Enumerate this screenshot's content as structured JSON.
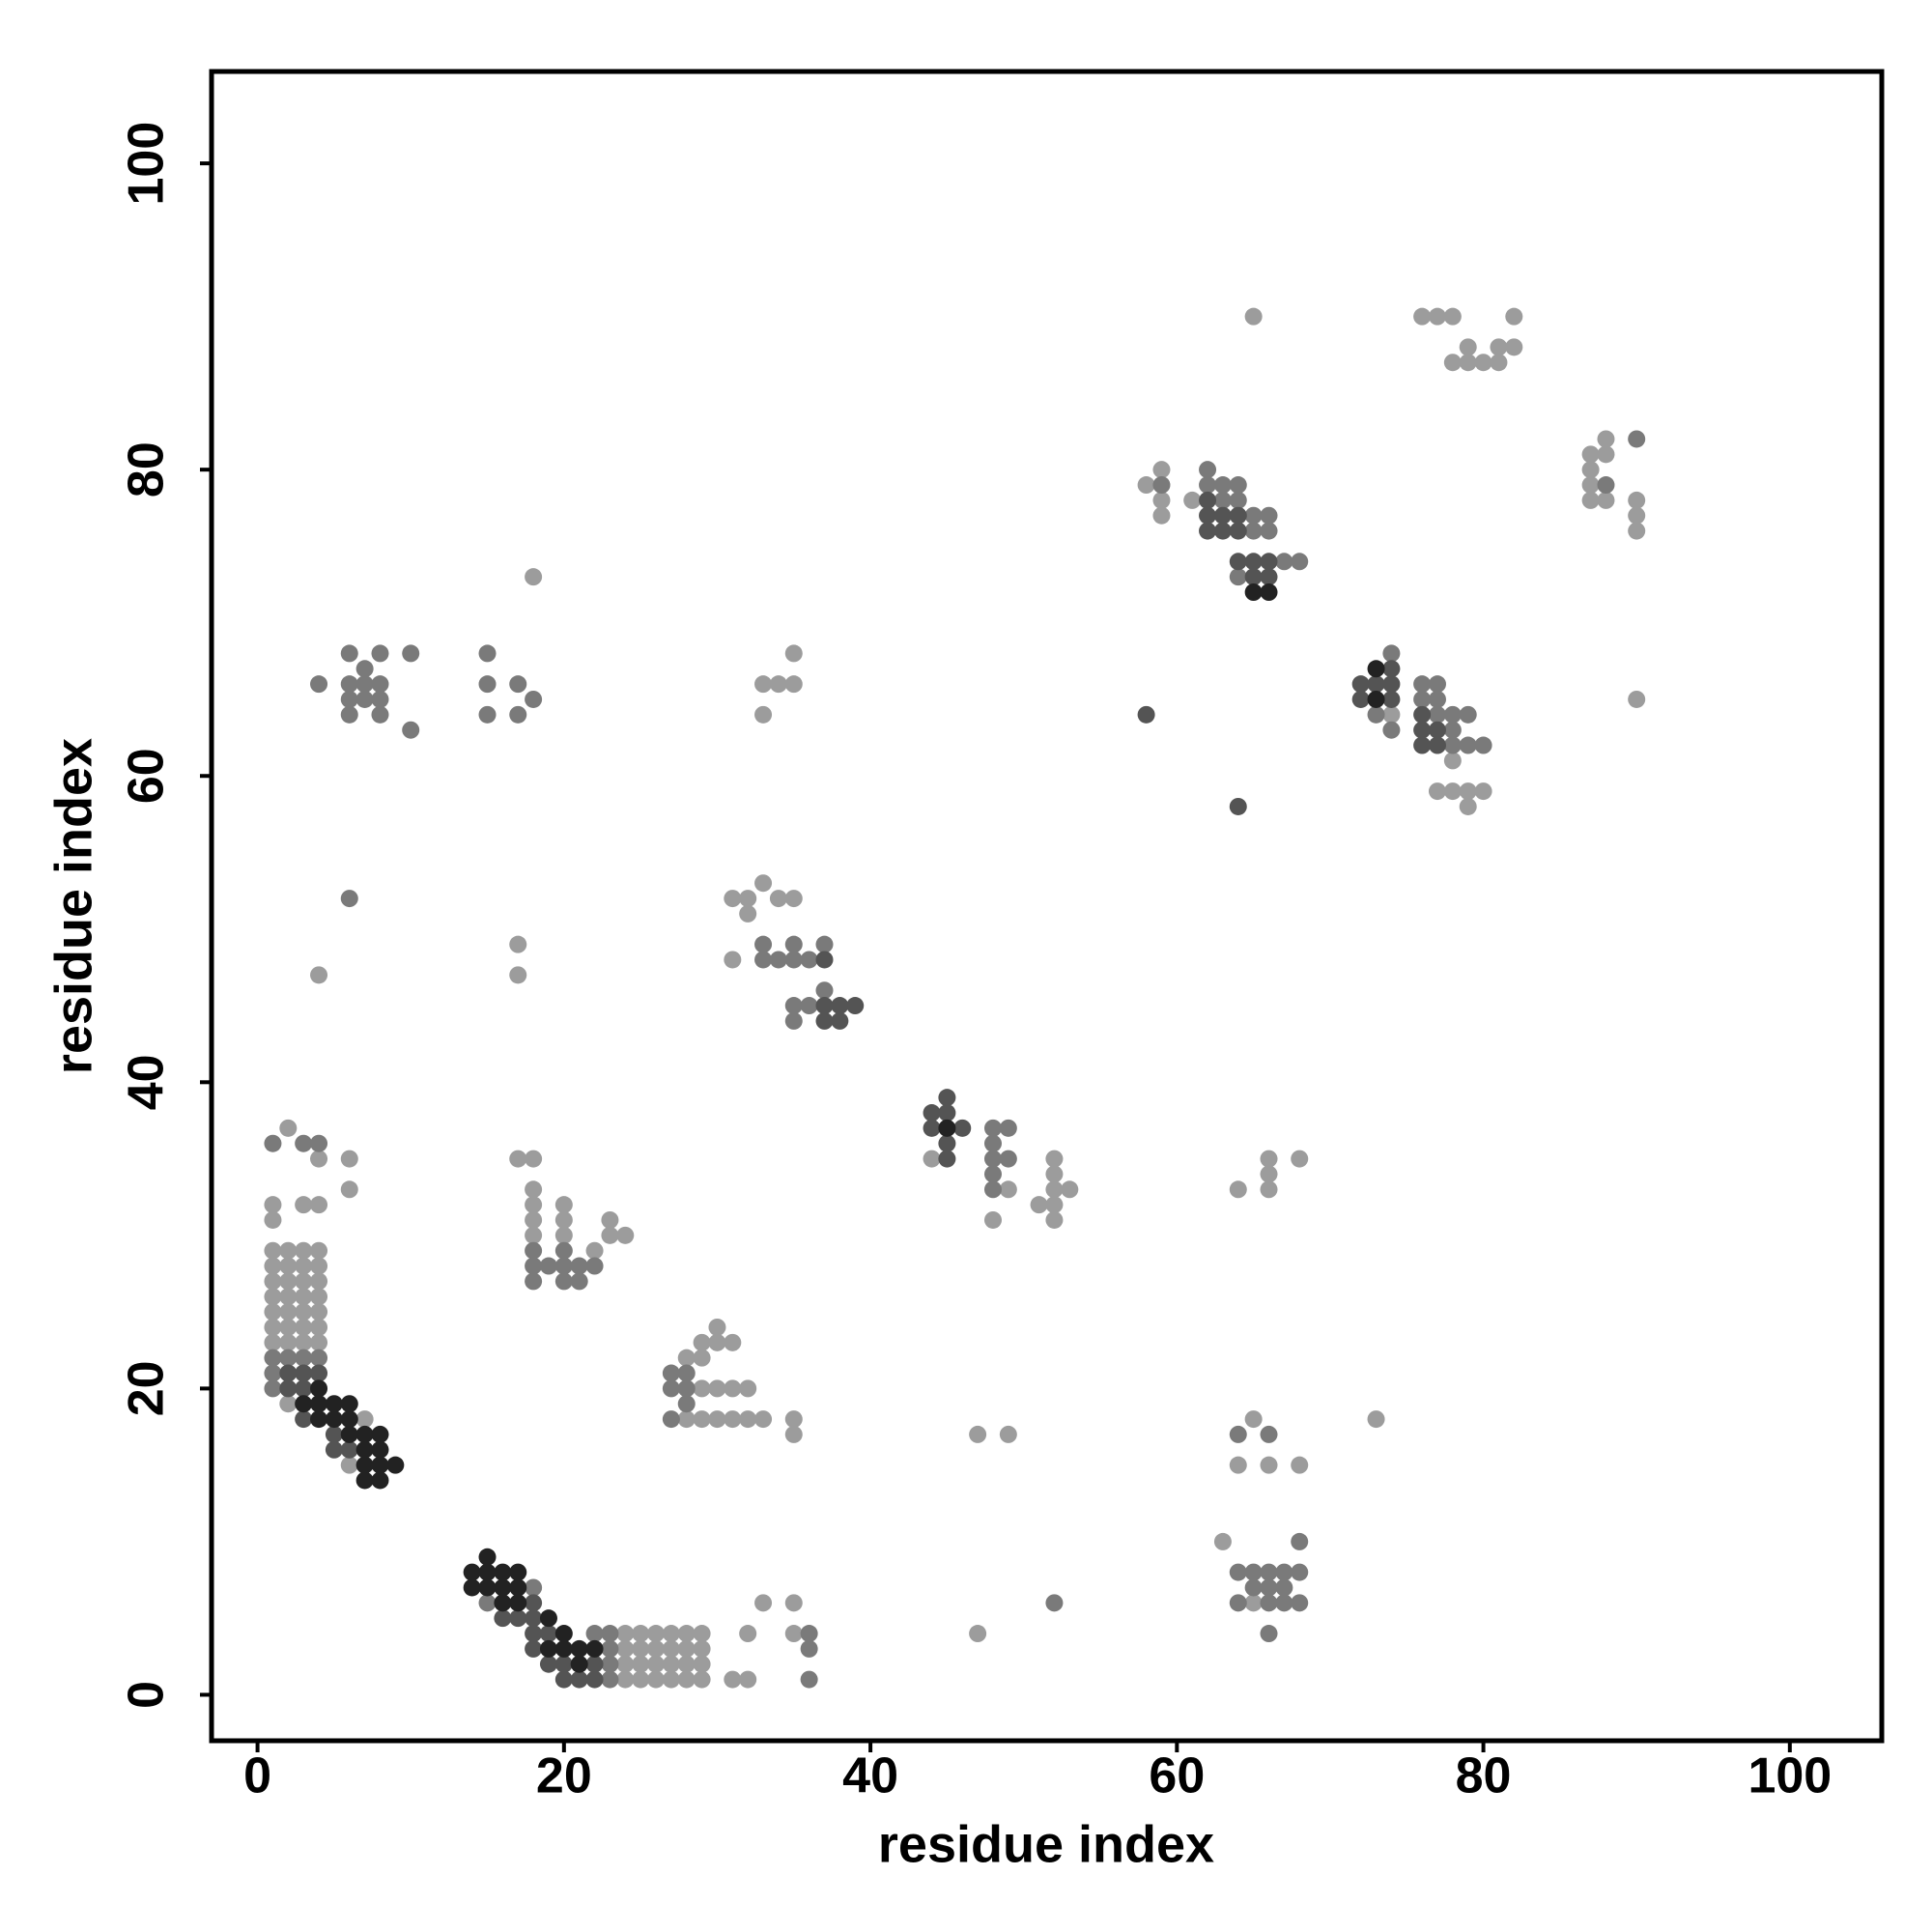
{
  "chart_data": {
    "type": "scatter",
    "xlabel": "residue index",
    "ylabel": "residue index",
    "xlim": [
      -3,
      106
    ],
    "ylim": [
      -3,
      106
    ],
    "xticks": [
      0,
      20,
      40,
      60,
      80,
      100
    ],
    "yticks": [
      0,
      20,
      40,
      60,
      80,
      100
    ],
    "grid": false,
    "series": [
      {
        "color": "#9c9c9c",
        "x": [
          1,
          1,
          1,
          1,
          1,
          1,
          1,
          2,
          2,
          2,
          2,
          2,
          2,
          2,
          3,
          3,
          3,
          3,
          3,
          3,
          3,
          4,
          4,
          4,
          4,
          4,
          4,
          4,
          1,
          1,
          2,
          3,
          4,
          4,
          6,
          6,
          2,
          6,
          7,
          4,
          18,
          17,
          17,
          17,
          18,
          18,
          18,
          18,
          18,
          20,
          20,
          20,
          22,
          23,
          23,
          24,
          28,
          29,
          29,
          30,
          30,
          31,
          29,
          30,
          31,
          32,
          29,
          30,
          31,
          32,
          33,
          35,
          35,
          28,
          24,
          25,
          26,
          27,
          28,
          29,
          24,
          25,
          26,
          27,
          28,
          29,
          24,
          25,
          26,
          27,
          28,
          29,
          24,
          25,
          26,
          27,
          28,
          29,
          31,
          32,
          32,
          33,
          35,
          35,
          31,
          32,
          33,
          34,
          35,
          32,
          31,
          33,
          34,
          35,
          35,
          33,
          44,
          47,
          49,
          47,
          49,
          48,
          51,
          52,
          52,
          52,
          52,
          52,
          53,
          58,
          59,
          59,
          59,
          61,
          65,
          64,
          66,
          66,
          66,
          68,
          73,
          65,
          64,
          66,
          68,
          63,
          65,
          76,
          77,
          78,
          78,
          79,
          79,
          80,
          81,
          81,
          82,
          82,
          87,
          87,
          87,
          87,
          88,
          88,
          88,
          90,
          90,
          90,
          90,
          78,
          77,
          78,
          79,
          80,
          79,
          74
        ],
        "values": [
          23,
          24,
          25,
          26,
          27,
          28,
          29,
          23,
          24,
          25,
          26,
          27,
          28,
          29,
          23,
          24,
          25,
          26,
          27,
          28,
          29,
          23,
          24,
          25,
          26,
          27,
          28,
          29,
          31,
          32,
          37,
          32,
          32,
          35,
          35,
          33,
          19,
          15,
          18,
          47,
          73,
          49,
          47,
          35,
          35,
          33,
          32,
          31,
          30,
          32,
          31,
          30,
          29,
          31,
          30,
          30,
          22,
          23,
          22,
          24,
          23,
          23,
          20,
          20,
          20,
          20,
          18,
          18,
          18,
          18,
          18,
          18,
          17,
          18,
          4,
          4,
          4,
          4,
          4,
          4,
          3,
          3,
          3,
          3,
          3,
          3,
          2,
          2,
          2,
          2,
          2,
          2,
          1,
          1,
          1,
          1,
          1,
          1,
          1,
          1,
          4,
          6,
          6,
          4,
          52,
          52,
          53,
          52,
          52,
          51,
          48,
          66,
          66,
          66,
          68,
          64,
          35,
          17,
          17,
          4,
          33,
          31,
          32,
          35,
          34,
          33,
          32,
          31,
          33,
          79,
          80,
          78,
          77,
          78,
          90,
          33,
          35,
          34,
          33,
          35,
          18,
          18,
          15,
          15,
          15,
          10,
          6,
          90,
          90,
          90,
          87,
          88,
          87,
          87,
          87,
          88,
          88,
          90,
          81,
          80,
          79,
          78,
          82,
          81,
          78,
          78,
          77,
          76,
          65,
          61,
          59,
          59,
          59,
          59,
          58,
          64
        ]
      },
      {
        "color": "#7a7a7a",
        "x": [
          1,
          1,
          1,
          2,
          3,
          4,
          1,
          3,
          4,
          6,
          4,
          6,
          6,
          6,
          6,
          7,
          7,
          7,
          8,
          8,
          8,
          8,
          10,
          10,
          15,
          15,
          15,
          17,
          17,
          18,
          18,
          18,
          18,
          19,
          20,
          20,
          20,
          21,
          21,
          22,
          27,
          27,
          28,
          28,
          28,
          27,
          15,
          18,
          23,
          22,
          23,
          23,
          23,
          36,
          36,
          36,
          52,
          33,
          33,
          34,
          35,
          35,
          36,
          37,
          37,
          35,
          35,
          36,
          48,
          48,
          48,
          48,
          49,
          49,
          48,
          59,
          62,
          62,
          63,
          64,
          63,
          64,
          65,
          66,
          65,
          66,
          64,
          67,
          68,
          64,
          66,
          64,
          65,
          66,
          67,
          68,
          64,
          66,
          67,
          68,
          65,
          66,
          67,
          68,
          66,
          74,
          74,
          76,
          77,
          76,
          77,
          77,
          78,
          79,
          78,
          79,
          80,
          78,
          88,
          90,
          73
        ],
        "values": [
          22,
          21,
          20,
          22,
          22,
          22,
          36,
          36,
          36,
          52,
          66,
          68,
          66,
          65,
          64,
          67,
          66,
          65,
          68,
          66,
          65,
          64,
          68,
          63,
          68,
          66,
          64,
          66,
          64,
          65,
          29,
          28,
          27,
          28,
          29,
          28,
          27,
          28,
          27,
          28,
          21,
          20,
          21,
          20,
          19,
          18,
          6,
          7,
          4,
          4,
          3,
          2,
          1,
          4,
          3,
          1,
          6,
          49,
          48,
          48,
          49,
          48,
          48,
          49,
          46,
          45,
          44,
          45,
          37,
          36,
          35,
          34,
          37,
          35,
          33,
          79,
          80,
          79,
          79,
          79,
          78,
          78,
          77,
          77,
          76,
          76,
          73,
          74,
          74,
          17,
          17,
          8,
          8,
          8,
          8,
          8,
          6,
          6,
          6,
          6,
          7,
          7,
          7,
          10,
          4,
          68,
          63,
          66,
          66,
          65,
          65,
          64,
          64,
          64,
          63,
          62,
          62,
          62,
          79,
          82,
          64
        ]
      },
      {
        "color": "#545454",
        "x": [
          2,
          3,
          2,
          3,
          4,
          3,
          5,
          5,
          6,
          16,
          17,
          18,
          18,
          18,
          19,
          18,
          20,
          21,
          22,
          22,
          19,
          20,
          37,
          37,
          37,
          38,
          38,
          39,
          44,
          44,
          45,
          45,
          45,
          45,
          46,
          58,
          64,
          62,
          62,
          62,
          63,
          63,
          64,
          64,
          65,
          66,
          65,
          66,
          64,
          72,
          72,
          73,
          74,
          74,
          74,
          76,
          76,
          76,
          77,
          77
        ],
        "values": [
          21,
          21,
          20,
          20,
          21,
          18,
          17,
          16,
          16,
          5,
          5,
          6,
          5,
          4,
          4,
          3,
          2,
          1,
          2,
          1,
          2,
          1,
          48,
          45,
          44,
          45,
          44,
          45,
          38,
          37,
          39,
          38,
          36,
          35,
          37,
          64,
          58,
          78,
          77,
          76,
          77,
          76,
          77,
          76,
          74,
          74,
          73,
          73,
          74,
          66,
          65,
          66,
          66,
          65,
          67,
          64,
          63,
          62,
          63,
          62
        ]
      },
      {
        "color": "#222222",
        "x": [
          3,
          4,
          4,
          4,
          5,
          5,
          6,
          6,
          6,
          7,
          7,
          7,
          7,
          8,
          8,
          8,
          8,
          9,
          14,
          14,
          15,
          15,
          15,
          16,
          16,
          16,
          17,
          17,
          17,
          19,
          19,
          20,
          20,
          21,
          21,
          22,
          45,
          73,
          73,
          65,
          66
        ],
        "values": [
          19,
          20,
          19,
          18,
          19,
          18,
          19,
          18,
          17,
          17,
          16,
          15,
          14,
          17,
          16,
          15,
          14,
          15,
          8,
          7,
          9,
          8,
          7,
          8,
          7,
          6,
          8,
          7,
          6,
          5,
          3,
          4,
          3,
          3,
          2,
          3,
          37,
          67,
          65,
          72,
          72
        ]
      }
    ]
  }
}
